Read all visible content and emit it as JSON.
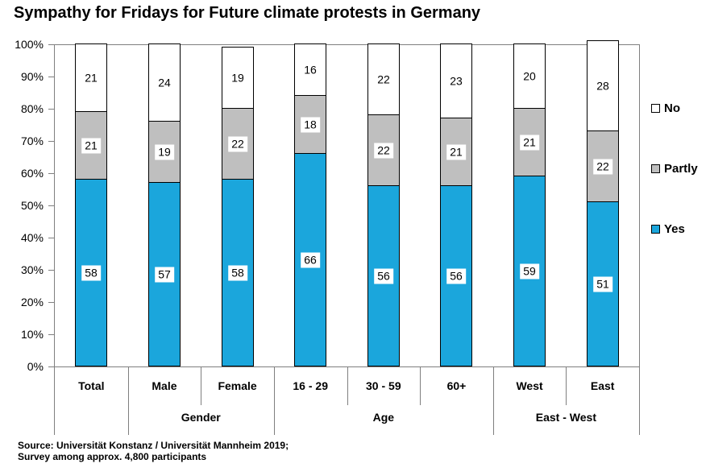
{
  "title": "Sympathy for Fridays for Future climate protests in Germany",
  "source": {
    "line1": "Source: Universität Konstanz / Universität Mannheim 2019;",
    "line2": "Survey among approx. 4,800 participants"
  },
  "chart_data": {
    "type": "bar",
    "stacked": true,
    "title": "Sympathy for Fridays for Future climate protests in Germany",
    "xlabel": "",
    "ylabel": "",
    "ylim": [
      0,
      100
    ],
    "y_ticks": [
      "0%",
      "10%",
      "20%",
      "30%",
      "40%",
      "50%",
      "60%",
      "70%",
      "80%",
      "90%",
      "100%"
    ],
    "grid": "top-line-only",
    "legend_position": "right",
    "legend_order": [
      "No",
      "Partly",
      "Yes"
    ],
    "categories": [
      "Total",
      "Male",
      "Female",
      "16 - 29",
      "30 - 59",
      "60+",
      "West",
      "East"
    ],
    "groups": [
      {
        "label": "",
        "count": 1
      },
      {
        "label": "Gender",
        "count": 2
      },
      {
        "label": "Age",
        "count": 3
      },
      {
        "label": "East - West",
        "count": 2
      }
    ],
    "series": [
      {
        "name": "Yes",
        "color": "#1BA6DC",
        "values": [
          58,
          57,
          58,
          66,
          56,
          56,
          59,
          51
        ]
      },
      {
        "name": "Partly",
        "color": "#BFBFBF",
        "values": [
          21,
          19,
          22,
          18,
          22,
          21,
          21,
          22
        ]
      },
      {
        "name": "No",
        "color": "#FFFFFF",
        "values": [
          21,
          24,
          19,
          16,
          22,
          23,
          20,
          28
        ]
      }
    ],
    "colors": {
      "axis_line": "#7f7f7f",
      "bar_border": "#000000",
      "label_background": "#ffffff",
      "text": "#000000"
    }
  }
}
